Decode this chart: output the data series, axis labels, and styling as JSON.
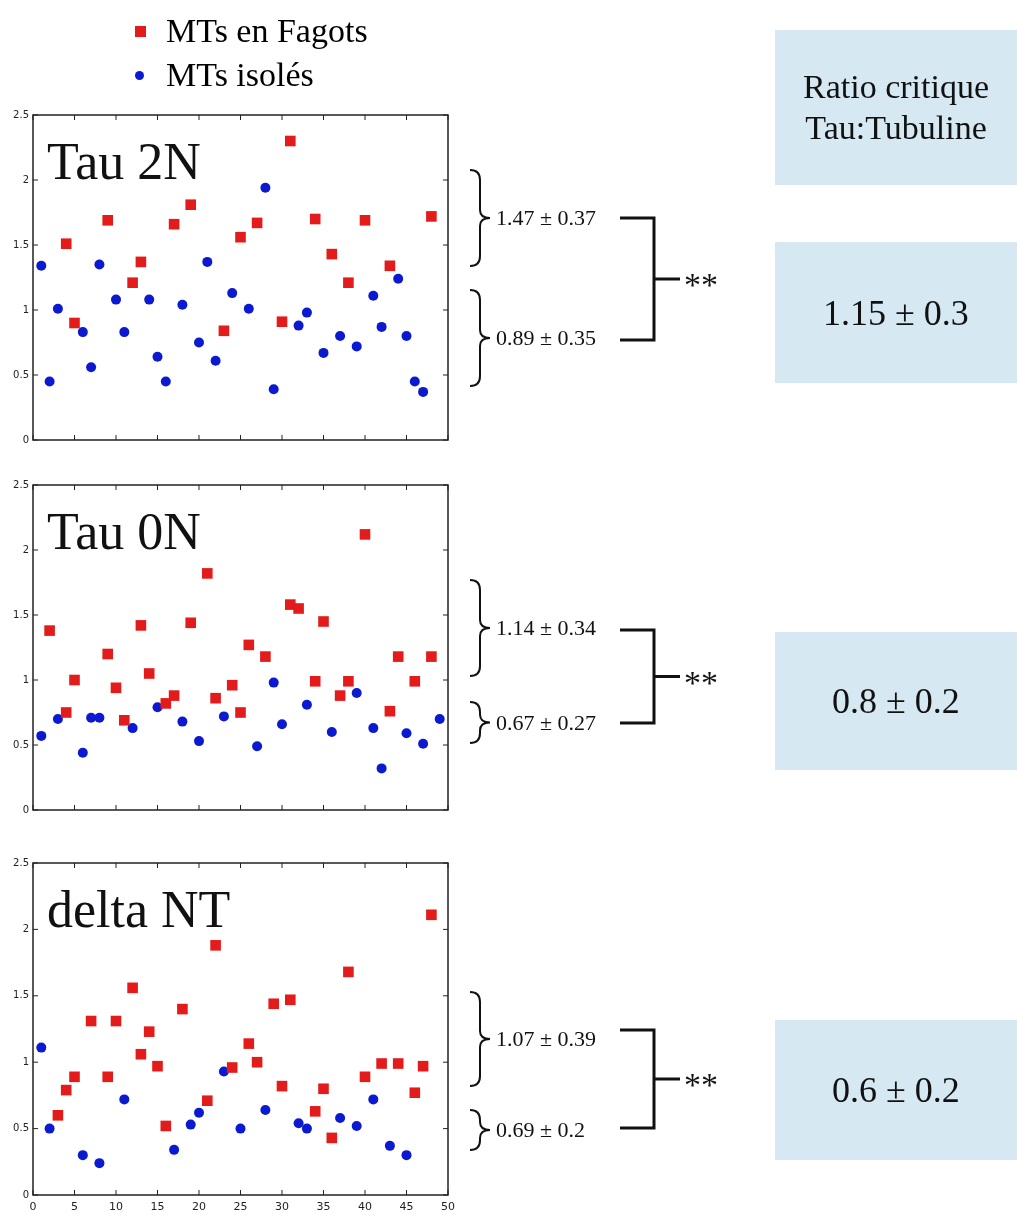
{
  "chart_data": [
    {
      "type": "scatter",
      "title": "Tau 2N",
      "xlim": [
        0,
        50
      ],
      "xticks": [
        0,
        5,
        10,
        15,
        20,
        25,
        30,
        35,
        40,
        45,
        50
      ],
      "ylim": [
        0,
        2.5
      ],
      "yticks": [
        0,
        0.5,
        1,
        1.5,
        2,
        2.5
      ],
      "tick_labels": "y",
      "legend": "top left",
      "grid": false,
      "annotations": [
        "Ratio critique Tau:Tubuline",
        "1.15 ± 0.3",
        "1.47 ± 0.37",
        "0.89 ± 0.35",
        "**"
      ],
      "series": [
        {
          "name": "MTs en Fagots",
          "color": "#e31b1b",
          "marker": "square",
          "x": [
            4,
            5,
            9,
            12,
            13,
            17,
            19,
            23,
            25,
            27,
            30,
            31,
            34,
            36,
            38,
            40,
            43,
            48
          ],
          "values": [
            1.51,
            0.9,
            1.69,
            1.21,
            1.37,
            1.66,
            1.81,
            0.84,
            1.56,
            1.67,
            0.91,
            2.3,
            1.7,
            1.43,
            1.21,
            1.69,
            1.34,
            1.72
          ]
        },
        {
          "name": "MTs isolés",
          "color": "#0b1ad0",
          "marker": "circle",
          "x": [
            1,
            2,
            3,
            6,
            7,
            8,
            10,
            11,
            14,
            15,
            16,
            18,
            20,
            21,
            22,
            24,
            26,
            28,
            29,
            32,
            33,
            35,
            37,
            39,
            41,
            42,
            44,
            45,
            46,
            47
          ],
          "values": [
            1.34,
            0.45,
            1.01,
            0.83,
            0.56,
            1.35,
            1.08,
            0.83,
            1.08,
            0.64,
            0.45,
            1.04,
            0.75,
            1.37,
            0.61,
            1.13,
            1.01,
            1.94,
            0.39,
            0.88,
            0.98,
            0.67,
            0.8,
            0.72,
            1.11,
            0.87,
            1.24,
            0.8,
            0.45,
            0.37
          ]
        }
      ]
    },
    {
      "type": "scatter",
      "title": "Tau 0N",
      "xlim": [
        0,
        50
      ],
      "xticks": [
        0,
        5,
        10,
        15,
        20,
        25,
        30,
        35,
        40,
        45,
        50
      ],
      "ylim": [
        0,
        2.5
      ],
      "yticks": [
        0,
        0.5,
        1,
        1.5,
        2,
        2.5
      ],
      "tick_labels": "y",
      "grid": false,
      "annotations": [
        "0.8 ± 0.2",
        "1.14 ± 0.34",
        "0.67 ± 0.27",
        "**"
      ],
      "series": [
        {
          "color": "#e31b1b",
          "marker": "square",
          "x": [
            2,
            4,
            5,
            9,
            10,
            11,
            13,
            14,
            16,
            17,
            19,
            21,
            22,
            24,
            25,
            26,
            28,
            31,
            32,
            34,
            35,
            37,
            38,
            40,
            43,
            44,
            46,
            48
          ],
          "values": [
            1.38,
            0.75,
            1.0,
            1.2,
            0.94,
            0.69,
            1.42,
            1.05,
            0.82,
            0.88,
            1.44,
            1.82,
            0.86,
            0.96,
            0.75,
            1.27,
            1.18,
            1.58,
            1.55,
            0.99,
            1.45,
            0.88,
            0.99,
            2.12,
            0.76,
            1.18,
            0.99,
            1.18
          ]
        },
        {
          "color": "#0b1ad0",
          "marker": "circle",
          "x": [
            1,
            3,
            6,
            7,
            8,
            12,
            15,
            18,
            20,
            23,
            27,
            29,
            30,
            33,
            36,
            39,
            41,
            42,
            45,
            47,
            49
          ],
          "values": [
            0.57,
            0.7,
            0.44,
            0.71,
            0.71,
            0.63,
            0.79,
            0.68,
            0.53,
            0.72,
            0.49,
            0.98,
            0.66,
            0.81,
            0.6,
            0.9,
            0.63,
            0.32,
            0.59,
            0.51,
            0.7
          ]
        }
      ]
    },
    {
      "type": "scatter",
      "title": "delta NT",
      "xlim": [
        0,
        50
      ],
      "xticks": [
        0,
        5,
        10,
        15,
        20,
        25,
        30,
        35,
        40,
        45,
        50
      ],
      "ylim": [
        0,
        2.5
      ],
      "yticks": [
        0,
        0.5,
        1,
        1.5,
        2,
        2.5
      ],
      "grid": false,
      "annotations": [
        "0.6 ± 0.2",
        "1.07 ± 0.39",
        "0.69 ± 0.2",
        "**"
      ],
      "series": [
        {
          "color": "#e31b1b",
          "marker": "square",
          "x": [
            3,
            4,
            5,
            7,
            9,
            10,
            12,
            13,
            14,
            15,
            16,
            18,
            21,
            22,
            24,
            26,
            27,
            29,
            30,
            31,
            34,
            35,
            36,
            38,
            40,
            42,
            44,
            46,
            47,
            48
          ],
          "values": [
            0.6,
            0.79,
            0.89,
            1.31,
            0.89,
            1.31,
            1.56,
            1.06,
            1.23,
            0.97,
            0.52,
            1.4,
            0.71,
            1.88,
            0.96,
            1.14,
            1.0,
            1.44,
            0.82,
            1.47,
            0.63,
            0.8,
            0.43,
            1.68,
            0.89,
            0.99,
            0.99,
            0.77,
            0.97,
            2.11
          ]
        },
        {
          "color": "#0b1ad0",
          "marker": "circle",
          "x": [
            1,
            2,
            6,
            8,
            11,
            17,
            19,
            20,
            23,
            25,
            28,
            32,
            33,
            37,
            39,
            41,
            43,
            45
          ],
          "values": [
            1.11,
            0.5,
            0.3,
            0.24,
            0.72,
            0.34,
            0.53,
            0.62,
            0.93,
            0.5,
            0.64,
            0.54,
            0.5,
            0.58,
            0.52,
            0.72,
            0.37,
            0.3
          ]
        }
      ]
    }
  ]
}
